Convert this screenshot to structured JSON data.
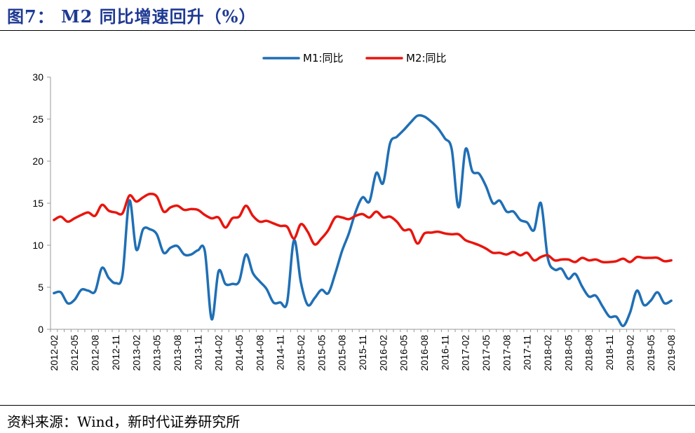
{
  "header": {
    "title": "图7： M2 同比增速回升（%）"
  },
  "footer": {
    "source": "资料来源：Wind，新时代证券研究所"
  },
  "colors": {
    "m1": "#1f6fb5",
    "m2": "#e8150d",
    "axis": "#999999"
  },
  "chart_data": {
    "type": "line",
    "title": "",
    "xlabel": "",
    "ylabel": "",
    "ylim": [
      0,
      30
    ],
    "yticks": [
      0,
      5,
      10,
      15,
      20,
      25,
      30
    ],
    "grid": false,
    "legend": "top-center",
    "x": [
      "2012-02",
      "2012-03",
      "2012-04",
      "2012-05",
      "2012-06",
      "2012-07",
      "2012-08",
      "2012-09",
      "2012-10",
      "2012-11",
      "2012-12",
      "2013-01",
      "2013-02",
      "2013-03",
      "2013-04",
      "2013-05",
      "2013-06",
      "2013-07",
      "2013-08",
      "2013-09",
      "2013-10",
      "2013-11",
      "2013-12",
      "2014-01",
      "2014-02",
      "2014-03",
      "2014-04",
      "2014-05",
      "2014-06",
      "2014-07",
      "2014-08",
      "2014-09",
      "2014-10",
      "2014-11",
      "2014-12",
      "2015-01",
      "2015-02",
      "2015-03",
      "2015-04",
      "2015-05",
      "2015-06",
      "2015-07",
      "2015-08",
      "2015-09",
      "2015-10",
      "2015-11",
      "2015-12",
      "2016-01",
      "2016-02",
      "2016-03",
      "2016-04",
      "2016-05",
      "2016-06",
      "2016-07",
      "2016-08",
      "2016-09",
      "2016-10",
      "2016-11",
      "2016-12",
      "2017-01",
      "2017-02",
      "2017-03",
      "2017-04",
      "2017-05",
      "2017-06",
      "2017-07",
      "2017-08",
      "2017-09",
      "2017-10",
      "2017-11",
      "2017-12",
      "2018-01",
      "2018-02",
      "2018-03",
      "2018-04",
      "2018-05",
      "2018-06",
      "2018-07",
      "2018-08",
      "2018-09",
      "2018-10",
      "2018-11",
      "2018-12",
      "2019-01",
      "2019-02",
      "2019-03",
      "2019-04",
      "2019-05",
      "2019-06",
      "2019-07",
      "2019-08"
    ],
    "xtick_labels": [
      "2012-02",
      "2012-05",
      "2012-08",
      "2012-11",
      "2013-02",
      "2013-05",
      "2013-08",
      "2013-11",
      "2014-02",
      "2014-05",
      "2014-08",
      "2014-11",
      "2015-02",
      "2015-05",
      "2015-08",
      "2015-11",
      "2016-02",
      "2016-05",
      "2016-08",
      "2016-11",
      "2017-02",
      "2017-05",
      "2017-08",
      "2017-11",
      "2018-02",
      "2018-05",
      "2018-08",
      "2018-11",
      "2019-02",
      "2019-05",
      "2019-08"
    ],
    "series": [
      {
        "name": "M1:同比",
        "color": "#1f6fb5",
        "values": [
          4.3,
          4.4,
          3.1,
          3.5,
          4.7,
          4.6,
          4.5,
          7.3,
          6.1,
          5.5,
          6.5,
          15.3,
          9.5,
          11.9,
          11.9,
          11.3,
          9.1,
          9.7,
          9.9,
          8.9,
          8.9,
          9.4,
          9.3,
          1.2,
          6.9,
          5.4,
          5.4,
          5.7,
          8.9,
          6.7,
          5.7,
          4.8,
          3.2,
          3.2,
          3.2,
          10.6,
          5.6,
          2.9,
          3.7,
          4.7,
          4.3,
          6.6,
          9.3,
          11.4,
          14.0,
          15.7,
          15.2,
          18.6,
          17.4,
          22.1,
          22.9,
          23.7,
          24.6,
          25.4,
          25.3,
          24.7,
          23.9,
          22.7,
          21.4,
          14.5,
          21.4,
          18.8,
          18.5,
          17.0,
          15.0,
          15.3,
          14.0,
          14.0,
          13.0,
          12.7,
          11.8,
          15.0,
          8.5,
          7.1,
          7.2,
          6.0,
          6.6,
          5.1,
          3.9,
          4.0,
          2.7,
          1.5,
          1.5,
          0.4,
          2.0,
          4.6,
          2.9,
          3.4,
          4.4,
          3.1,
          3.4
        ]
      },
      {
        "name": "M2:同比",
        "color": "#e8150d",
        "values": [
          13.0,
          13.4,
          12.8,
          13.2,
          13.6,
          13.9,
          13.5,
          14.8,
          14.1,
          13.9,
          13.8,
          15.9,
          15.2,
          15.7,
          16.1,
          15.8,
          14.0,
          14.5,
          14.7,
          14.2,
          14.3,
          14.2,
          13.6,
          13.2,
          13.3,
          12.1,
          13.2,
          13.4,
          14.7,
          13.5,
          12.8,
          12.9,
          12.6,
          12.3,
          12.2,
          10.8,
          12.5,
          11.6,
          10.1,
          10.8,
          11.8,
          13.3,
          13.3,
          13.1,
          13.5,
          13.7,
          13.3,
          14.0,
          13.3,
          13.4,
          12.8,
          11.8,
          11.8,
          10.2,
          11.4,
          11.5,
          11.6,
          11.4,
          11.3,
          11.3,
          10.6,
          10.3,
          10.0,
          9.6,
          9.1,
          9.1,
          8.9,
          9.2,
          8.8,
          9.1,
          8.2,
          8.6,
          8.8,
          8.2,
          8.3,
          8.3,
          8.0,
          8.5,
          8.2,
          8.3,
          8.0,
          8.0,
          8.1,
          8.4,
          8.0,
          8.6,
          8.5,
          8.5,
          8.5,
          8.1,
          8.2
        ]
      }
    ]
  }
}
